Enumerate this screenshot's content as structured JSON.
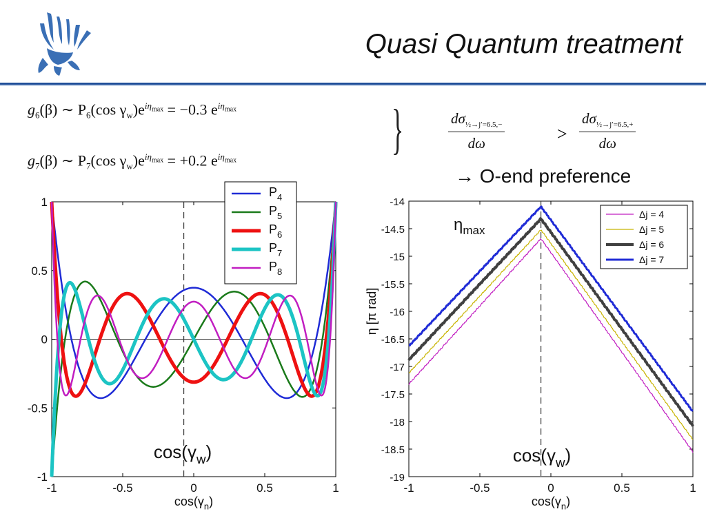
{
  "slide": {
    "title": "Quasi Quantum treatment",
    "equations": {
      "g6_lhs": "g",
      "g6_sub": "6",
      "g6_mid": "(β) ∼ P",
      "g6_psub": "6",
      "g6_arg": "(cos γ",
      "g6_w": "w",
      "g6_close": ")e",
      "g6_exp": "iη",
      "g6_expsub": "max",
      "g6_rhs": " = −0.3 e",
      "g7_lhs": "g",
      "g7_sub": "7",
      "g7_mid": "(β) ∼ P",
      "g7_psub": "7",
      "g7_arg": "(cos γ",
      "g7_w": "w",
      "g7_close": ")e",
      "g7_exp": "iη",
      "g7_expsub": "max",
      "g7_rhs": " = +0.2 e",
      "frac_left_num": "dσ",
      "frac_left_sub": "½→j′=6.5,−",
      "frac_right_num": "dσ",
      "frac_right_sub": "½→j′=6.5,+",
      "frac_den": "dω",
      "gt": ">"
    },
    "conclusion": "→  O-end preference",
    "colors": {
      "rule": "#1f4e99",
      "logo": "#3a6fb5"
    }
  },
  "chart_data": [
    {
      "type": "line",
      "title": "",
      "xlabel": "cos(γn)",
      "ylabel": "",
      "xlim": [
        -1,
        1
      ],
      "ylim": [
        -1,
        1
      ],
      "xticks": [
        "-1",
        "-0.5",
        "0",
        "0.5",
        "1"
      ],
      "yticks": [
        "-1",
        "-0.5",
        "0",
        "0.5",
        "1"
      ],
      "annotation": "cos(γw)",
      "vline_x": -0.07,
      "legend_position": "top-right, outside",
      "series": [
        {
          "name": "P4",
          "order": 4,
          "color": "#1f2bd6",
          "width": 2.5
        },
        {
          "name": "P5",
          "order": 5,
          "color": "#1a7a1a",
          "width": 2.5
        },
        {
          "name": "P6",
          "order": 6,
          "color": "#ee1111",
          "width": 5
        },
        {
          "name": "P7",
          "order": 7,
          "color": "#1cc4c4",
          "width": 5
        },
        {
          "name": "P8",
          "order": 8,
          "color": "#c11ec1",
          "width": 2.5
        }
      ]
    },
    {
      "type": "line",
      "title": "",
      "xlabel": "cos(γn)",
      "ylabel": "η [π rad]",
      "xlim": [
        -1,
        1
      ],
      "ylim": [
        -19,
        -14
      ],
      "xticks": [
        "-1",
        "-0.5",
        "0",
        "0.5",
        "1"
      ],
      "yticks": [
        "-14",
        "-14.5",
        "-15",
        "-15.5",
        "-16",
        "-16.5",
        "-17",
        "-17.5",
        "-18",
        "-18.5",
        "-19"
      ],
      "annotation": "cos(γw)",
      "peak_label": "ηmax",
      "vline_x": -0.07,
      "legend_position": "top-right",
      "series": [
        {
          "name": "Δj = 4",
          "color": "#c11ec1",
          "width": 1.2,
          "x": [
            -1,
            -0.07,
            1
          ],
          "y": [
            -17.32,
            -14.68,
            -18.55
          ]
        },
        {
          "name": "Δj = 5",
          "color": "#c8b400",
          "width": 1.2,
          "x": [
            -1,
            -0.07,
            1
          ],
          "y": [
            -17.12,
            -14.52,
            -18.33
          ]
        },
        {
          "name": "Δj = 6",
          "color": "#404040",
          "width": 4,
          "x": [
            -1,
            -0.07,
            1
          ],
          "y": [
            -16.88,
            -14.32,
            -18.08
          ]
        },
        {
          "name": "Δj = 7",
          "color": "#1f2bd6",
          "width": 3,
          "x": [
            -1,
            -0.07,
            1
          ],
          "y": [
            -16.63,
            -14.1,
            -17.82
          ]
        }
      ]
    }
  ]
}
